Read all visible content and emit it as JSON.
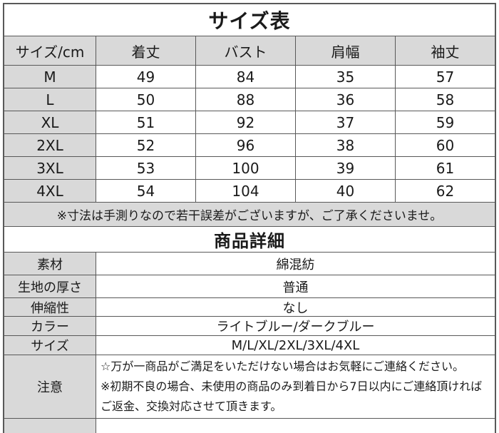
{
  "colors": {
    "cell_gray": "#d9d9d9",
    "cell_white": "#ffffff",
    "border": "#595959",
    "text": "#1a1a1a"
  },
  "size_table": {
    "title": "サイズ表",
    "columns": [
      "サイズ/cm",
      "着丈",
      "バスト",
      "肩幅",
      "袖丈"
    ],
    "rows": [
      {
        "size": "M",
        "values": [
          "49",
          "84",
          "35",
          "57"
        ]
      },
      {
        "size": "L",
        "values": [
          "50",
          "88",
          "36",
          "58"
        ]
      },
      {
        "size": "XL",
        "values": [
          "51",
          "92",
          "37",
          "59"
        ]
      },
      {
        "size": "2XL",
        "values": [
          "52",
          "96",
          "38",
          "60"
        ]
      },
      {
        "size": "3XL",
        "values": [
          "53",
          "100",
          "39",
          "61"
        ]
      },
      {
        "size": "4XL",
        "values": [
          "54",
          "104",
          "40",
          "62"
        ]
      }
    ],
    "note": "※寸法は手測りなので若干誤差がございますが、ご了承くださいませ。"
  },
  "detail_table": {
    "title": "商品詳細",
    "rows": [
      {
        "label": "素材",
        "value": "綿混紡"
      },
      {
        "label": "生地の厚さ",
        "value": "普通"
      },
      {
        "label": "伸縮性",
        "value": "なし"
      },
      {
        "label": "カラー",
        "value": "ライトブルー/ダークブルー"
      },
      {
        "label": "サイズ",
        "value": "M/L/XL/2XL/3XL/4XL"
      }
    ],
    "notice": {
      "label": "注意",
      "line1": "☆万が一商品がご満足をいただけない場合はお気軽にご連絡ください。",
      "line2": "※初期不良の場合、未使用の商品のみ到着日から7日以内にご連絡頂ければご返金、交換対応させて頂きます。"
    }
  }
}
